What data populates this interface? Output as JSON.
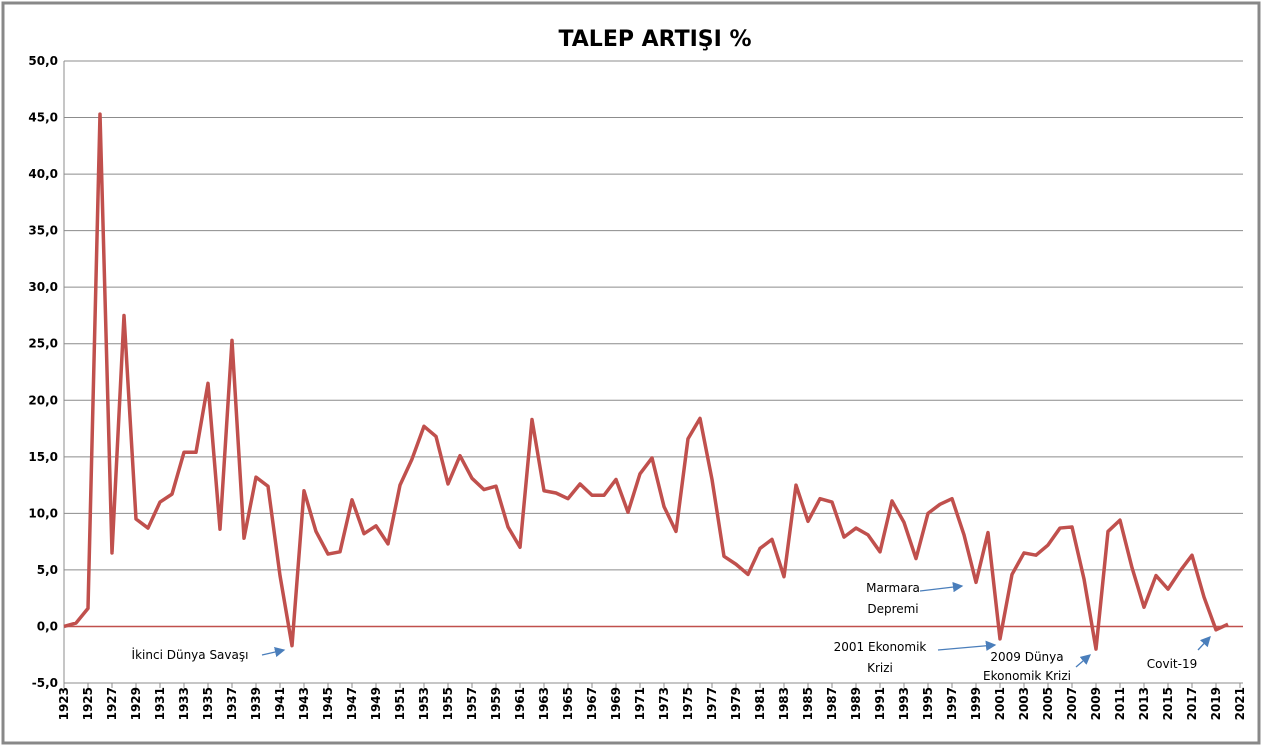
{
  "chart_data": {
    "type": "line",
    "title": "TALEP ARTIŞI  %",
    "x": [
      1923,
      1924,
      1925,
      1926,
      1927,
      1928,
      1929,
      1930,
      1931,
      1932,
      1933,
      1934,
      1935,
      1936,
      1937,
      1938,
      1939,
      1940,
      1941,
      1942,
      1943,
      1944,
      1945,
      1946,
      1947,
      1948,
      1949,
      1950,
      1951,
      1952,
      1953,
      1954,
      1955,
      1956,
      1957,
      1958,
      1959,
      1960,
      1961,
      1962,
      1963,
      1964,
      1965,
      1966,
      1967,
      1968,
      1969,
      1970,
      1971,
      1972,
      1973,
      1974,
      1975,
      1976,
      1977,
      1978,
      1979,
      1980,
      1981,
      1982,
      1983,
      1984,
      1985,
      1986,
      1987,
      1988,
      1989,
      1990,
      1991,
      1992,
      1993,
      1994,
      1995,
      1996,
      1997,
      1998,
      1999,
      2000,
      2001,
      2002,
      2003,
      2004,
      2005,
      2006,
      2007,
      2008,
      2009,
      2010,
      2011,
      2012,
      2013,
      2014,
      2015,
      2016,
      2017,
      2018,
      2019,
      2020,
      2021
    ],
    "series": [
      {
        "color": "#c0504d",
        "values": [
          0.0,
          0.3,
          1.6,
          45.3,
          6.5,
          27.5,
          9.5,
          8.7,
          11.0,
          11.7,
          15.4,
          15.4,
          21.5,
          8.6,
          25.3,
          7.8,
          13.2,
          12.4,
          4.5,
          -1.7,
          12.0,
          8.4,
          6.4,
          6.6,
          11.2,
          8.2,
          8.9,
          7.3,
          12.5,
          14.8,
          17.7,
          16.8,
          12.6,
          15.1,
          13.1,
          12.1,
          12.4,
          8.8,
          7.0,
          18.3,
          12.0,
          11.8,
          11.3,
          12.6,
          11.6,
          11.6,
          13.0,
          10.1,
          13.5,
          14.9,
          10.6,
          8.4,
          16.6,
          18.4,
          13.0,
          6.2,
          5.5,
          4.6,
          6.9,
          7.7,
          4.4,
          12.5,
          9.3,
          11.3,
          11.0,
          7.9,
          8.7,
          8.1,
          6.6,
          11.1,
          9.2,
          6.0,
          10.0,
          10.8,
          11.3,
          8.1,
          3.9,
          8.3,
          -1.1,
          4.6,
          6.5,
          6.3,
          7.2,
          8.7,
          8.8,
          4.2,
          -2.0,
          8.4,
          9.4,
          5.2,
          1.7,
          4.5,
          3.3,
          4.9,
          6.3,
          2.6,
          -0.3,
          0.2,
          null
        ]
      }
    ],
    "xlim": [
      1923,
      2021
    ],
    "xticks": [
      1923,
      1925,
      1927,
      1929,
      1931,
      1933,
      1935,
      1937,
      1939,
      1941,
      1943,
      1945,
      1947,
      1949,
      1951,
      1953,
      1955,
      1957,
      1959,
      1961,
      1963,
      1965,
      1967,
      1969,
      1971,
      1973,
      1975,
      1977,
      1979,
      1981,
      1983,
      1985,
      1987,
      1989,
      1991,
      1993,
      1995,
      1997,
      1999,
      2001,
      2003,
      2005,
      2007,
      2009,
      2011,
      2013,
      2015,
      2017,
      2019,
      2021
    ],
    "ylim": [
      -5,
      50
    ],
    "yticks": [
      {
        "value": -5,
        "label": "-5,0"
      },
      {
        "value": 0,
        "label": "0,0"
      },
      {
        "value": 5,
        "label": "5,0"
      },
      {
        "value": 10,
        "label": "10,0"
      },
      {
        "value": 15,
        "label": "15,0"
      },
      {
        "value": 20,
        "label": "20,0"
      },
      {
        "value": 25,
        "label": "25,0"
      },
      {
        "value": 30,
        "label": "30,0"
      },
      {
        "value": 35,
        "label": "35,0"
      },
      {
        "value": 40,
        "label": "40,0"
      },
      {
        "value": 45,
        "label": "45,0"
      },
      {
        "value": 50,
        "label": "50,0"
      }
    ],
    "grid": true,
    "annotations": [
      [
        "İkinci Dünya Savaşı"
      ],
      [
        "Marmara",
        "Depremi"
      ],
      [
        "2001 Ekonomik",
        "Krizi"
      ],
      [
        "2009 Dünya",
        "Ekonomik Krizi"
      ],
      [
        "Covit-19"
      ]
    ]
  }
}
